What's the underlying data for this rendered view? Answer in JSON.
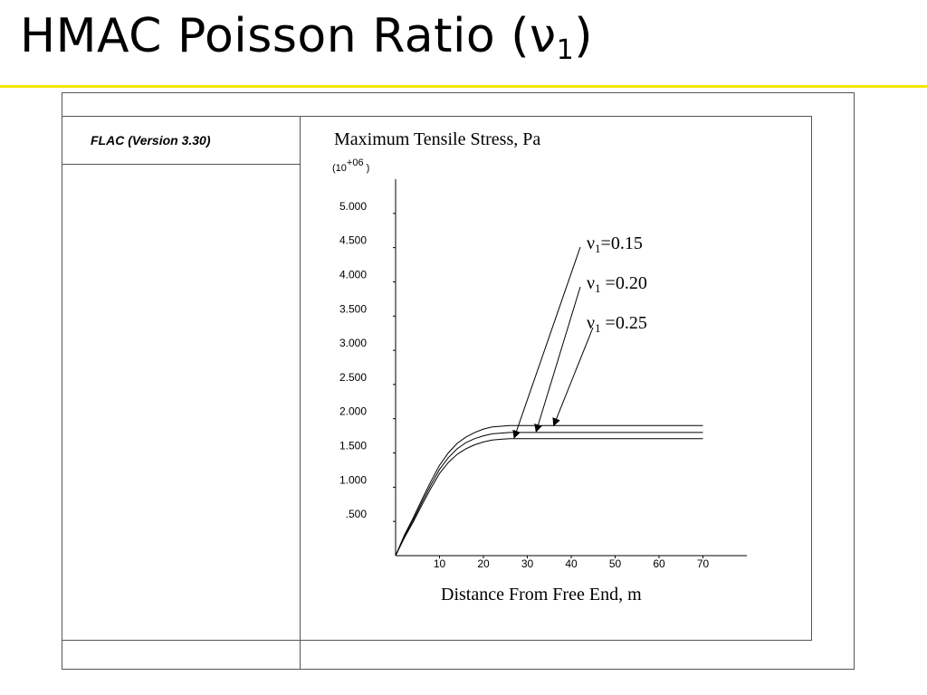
{
  "slide": {
    "title": "HMAC Poisson Ratio (ν",
    "title_sub": "1",
    "title_close": ")",
    "accent_color": "#f2e800"
  },
  "panel": {
    "software_label": "FLAC (Version 3.30)"
  },
  "chart_data": {
    "type": "line",
    "title": "Maximum Tensile Stress, Pa",
    "y_multiplier_base": "(10",
    "y_multiplier_exp": "+06",
    "y_multiplier_close": " )",
    "xlabel": "Distance From Free End, m",
    "ylabel": "",
    "xlim": [
      0,
      80
    ],
    "ylim": [
      0,
      5.5
    ],
    "x_ticks": [
      10,
      20,
      30,
      40,
      50,
      60,
      70
    ],
    "x_tick_labels": [
      "10",
      "20",
      "30",
      "40",
      "50",
      "60",
      "70"
    ],
    "y_ticks": [
      0.5,
      1,
      1.5,
      2,
      2.5,
      3,
      3.5,
      4,
      4.5,
      5
    ],
    "y_tick_labels": [
      ".500",
      "1.000",
      "1.500",
      "2.000",
      "2.500",
      "3.000",
      "3.500",
      "4.000",
      "4.500",
      "5.000"
    ],
    "grid": false,
    "series": [
      {
        "name": "ν1=0.15",
        "x": [
          0,
          2,
          4,
          6,
          8,
          10,
          12,
          14,
          16,
          18,
          20,
          22,
          24,
          26,
          28,
          30,
          35,
          40,
          50,
          60,
          70
        ],
        "values": [
          0.0,
          0.3,
          0.55,
          0.82,
          1.08,
          1.32,
          1.5,
          1.64,
          1.73,
          1.8,
          1.85,
          1.88,
          1.89,
          1.9,
          1.9,
          1.9,
          1.9,
          1.9,
          1.9,
          1.9,
          1.9
        ]
      },
      {
        "name": "ν1 =0.20",
        "x": [
          0,
          2,
          4,
          6,
          8,
          10,
          12,
          14,
          16,
          18,
          20,
          22,
          24,
          26,
          28,
          30,
          35,
          40,
          50,
          60,
          70
        ],
        "values": [
          0.0,
          0.28,
          0.52,
          0.78,
          1.03,
          1.26,
          1.43,
          1.56,
          1.65,
          1.71,
          1.75,
          1.78,
          1.79,
          1.8,
          1.8,
          1.8,
          1.8,
          1.8,
          1.8,
          1.8,
          1.8
        ]
      },
      {
        "name": "ν1 =0.25",
        "x": [
          0,
          2,
          4,
          6,
          8,
          10,
          12,
          14,
          16,
          18,
          20,
          22,
          24,
          26,
          28,
          30,
          35,
          40,
          50,
          60,
          70
        ],
        "values": [
          0.0,
          0.26,
          0.49,
          0.74,
          0.98,
          1.2,
          1.36,
          1.48,
          1.56,
          1.62,
          1.66,
          1.69,
          1.7,
          1.71,
          1.71,
          1.71,
          1.71,
          1.71,
          1.71,
          1.71,
          1.71
        ]
      }
    ],
    "annotations": [
      {
        "symbol": "ν",
        "sub": "1",
        "text": "=0.15",
        "arrow_to": [
          27,
          1.72
        ]
      },
      {
        "symbol": "ν",
        "sub": "1",
        "text": " =0.20",
        "arrow_to": [
          32,
          1.81
        ]
      },
      {
        "symbol": "ν",
        "sub": "1",
        "text": " =0.25",
        "arrow_to": [
          36,
          1.9
        ]
      }
    ]
  }
}
